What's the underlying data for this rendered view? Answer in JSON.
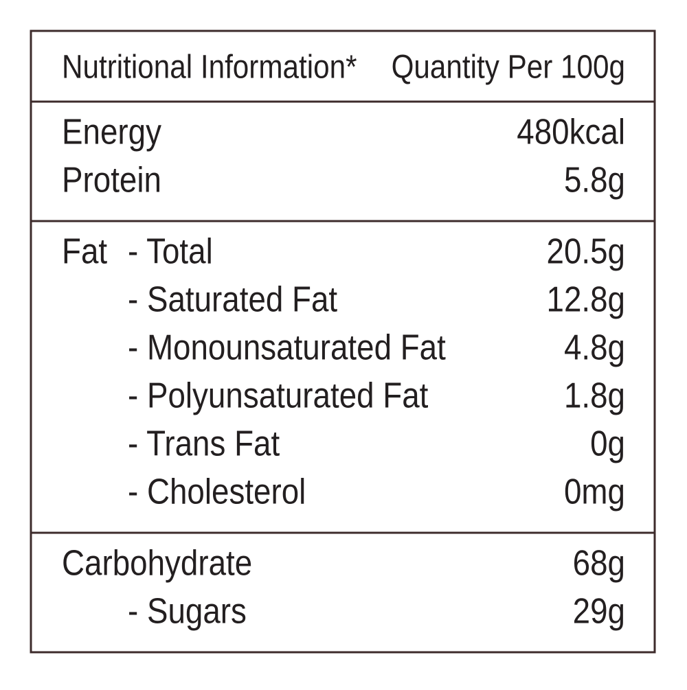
{
  "header": {
    "title": "Nutritional Information*",
    "quantity": "Quantity Per 100g"
  },
  "sections": [
    {
      "rows": [
        {
          "label": "Energy",
          "value": "480kcal"
        },
        {
          "label": "Protein",
          "value": "5.8g"
        }
      ]
    },
    {
      "rows": [
        {
          "label": "Fat",
          "items": [
            {
              "label": "- Total",
              "value": "20.5g"
            },
            {
              "label": "- Saturated Fat",
              "value": "12.8g"
            },
            {
              "label": "- Monounsaturated Fat",
              "value": "4.8g"
            },
            {
              "label": "- Polyunsaturated Fat",
              "value": "1.8g"
            },
            {
              "label": "- Trans Fat",
              "value": "0g"
            },
            {
              "label": "- Cholesterol",
              "value": "0mg"
            }
          ]
        }
      ]
    },
    {
      "rows": [
        {
          "label": "Carbohydrate",
          "value": "68g",
          "items": [
            {
              "label": "- Sugars",
              "value": "29g"
            }
          ]
        }
      ]
    }
  ]
}
